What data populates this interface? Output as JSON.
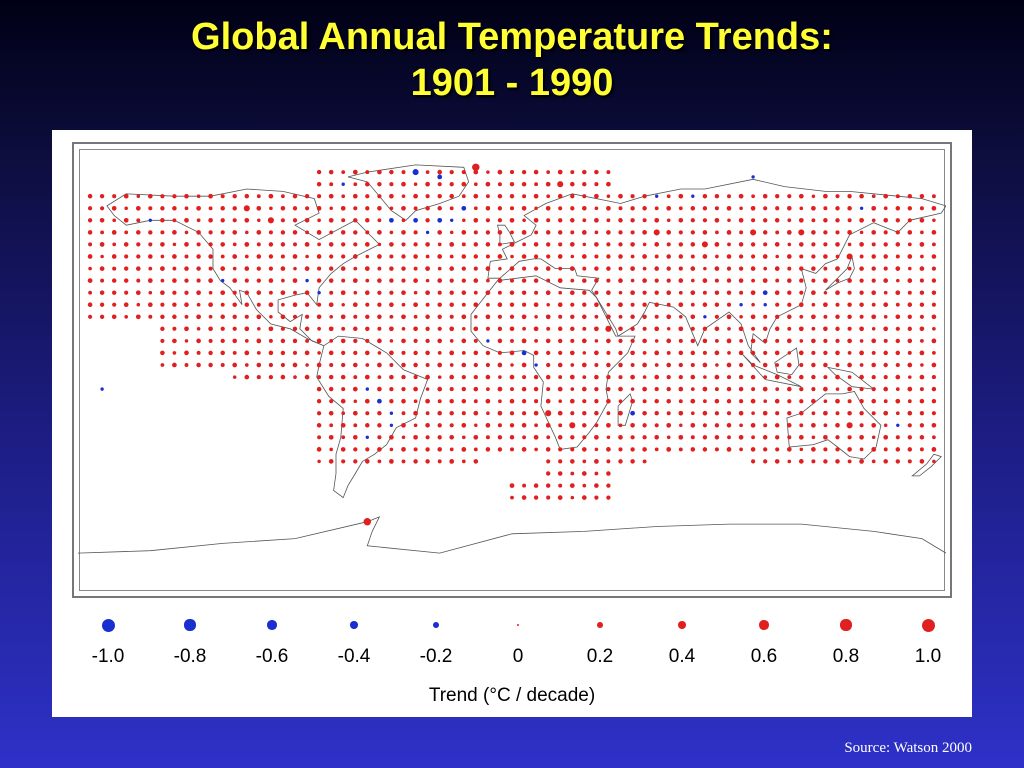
{
  "slide": {
    "title_line1": "Global Annual Temperature Trends:",
    "title_line2": "1901 - 1990",
    "source": "Source: Watson 2000"
  },
  "colors": {
    "title": "#ffff33",
    "warming_dot": "#e02020",
    "cooling_dot": "#1a2fd0",
    "coastline": "#555555",
    "background_top": "#000015",
    "background_bottom": "#2e31c8"
  },
  "legend": {
    "caption": "Trend (°C / decade)",
    "items": [
      {
        "value": -1.0,
        "label": "-1.0"
      },
      {
        "value": -0.8,
        "label": "-0.8"
      },
      {
        "value": -0.6,
        "label": "-0.6"
      },
      {
        "value": -0.4,
        "label": "-0.4"
      },
      {
        "value": -0.2,
        "label": "-0.2"
      },
      {
        "value": 0,
        "label": "0"
      },
      {
        "value": 0.2,
        "label": "0.2"
      },
      {
        "value": 0.4,
        "label": "0.4"
      },
      {
        "value": 0.6,
        "label": "0.6"
      },
      {
        "value": 0.8,
        "label": "0.8"
      },
      {
        "value": 1.0,
        "label": "1.0"
      }
    ]
  },
  "map": {
    "projection": "equirectangular",
    "lon_range": [
      -180,
      180
    ],
    "lat_range": [
      -90,
      90
    ],
    "grid_step_deg": 5,
    "typical_warming_trend": 0.4,
    "cooling_cells": [
      {
        "lon": -40,
        "lat": 80,
        "trend": -0.6
      },
      {
        "lon": -30,
        "lat": 78,
        "trend": -0.4
      },
      {
        "lon": -50,
        "lat": 60,
        "trend": -0.4
      },
      {
        "lon": -40,
        "lat": 60,
        "trend": -0.4
      },
      {
        "lon": -35,
        "lat": 55,
        "trend": -0.2
      },
      {
        "lon": -30,
        "lat": 60,
        "trend": -0.4
      },
      {
        "lon": -25,
        "lat": 60,
        "trend": -0.2
      },
      {
        "lon": -20,
        "lat": 65,
        "trend": -0.4
      },
      {
        "lon": -70,
        "lat": 75,
        "trend": -0.2
      },
      {
        "lon": 60,
        "lat": 70,
        "trend": -0.2
      },
      {
        "lon": 75,
        "lat": 70,
        "trend": -0.2
      },
      {
        "lon": 100,
        "lat": 78,
        "trend": -0.2
      },
      {
        "lon": 145,
        "lat": 65,
        "trend": -0.2
      },
      {
        "lon": 105,
        "lat": 30,
        "trend": -0.4
      },
      {
        "lon": 105,
        "lat": 25,
        "trend": -0.2
      },
      {
        "lon": 95,
        "lat": 25,
        "trend": -0.2
      },
      {
        "lon": 80,
        "lat": 20,
        "trend": -0.2
      },
      {
        "lon": 5,
        "lat": 5,
        "trend": -0.4
      },
      {
        "lon": 10,
        "lat": 0,
        "trend": -0.2
      },
      {
        "lon": -10,
        "lat": 10,
        "trend": -0.2
      },
      {
        "lon": -60,
        "lat": -10,
        "trend": -0.2
      },
      {
        "lon": -55,
        "lat": -15,
        "trend": -0.4
      },
      {
        "lon": -50,
        "lat": -20,
        "trend": -0.2
      },
      {
        "lon": -50,
        "lat": -25,
        "trend": -0.2
      },
      {
        "lon": -60,
        "lat": -30,
        "trend": -0.2
      },
      {
        "lon": 50,
        "lat": -20,
        "trend": -0.4
      },
      {
        "lon": -120,
        "lat": 35,
        "trend": -0.2
      },
      {
        "lon": -85,
        "lat": 35,
        "trend": -0.2
      },
      {
        "lon": -80,
        "lat": 30,
        "trend": -0.2
      },
      {
        "lon": -150,
        "lat": 60,
        "trend": -0.2
      },
      {
        "lon": 160,
        "lat": -25,
        "trend": -0.2
      },
      {
        "lon": -170,
        "lat": -10,
        "trend": -0.2
      }
    ],
    "strong_warming_cells": [
      {
        "lon": -60,
        "lat": -65,
        "trend": 0.8
      },
      {
        "lon": -15,
        "lat": 82,
        "trend": 0.8
      },
      {
        "lon": 20,
        "lat": 75,
        "trend": 0.6
      },
      {
        "lon": -110,
        "lat": 65,
        "trend": 0.6
      },
      {
        "lon": 100,
        "lat": 55,
        "trend": 0.6
      },
      {
        "lon": 120,
        "lat": 55,
        "trend": 0.6
      },
      {
        "lon": 60,
        "lat": 55,
        "trend": 0.6
      },
      {
        "lon": 80,
        "lat": 50,
        "trend": 0.6
      },
      {
        "lon": 140,
        "lat": 45,
        "trend": 0.6
      },
      {
        "lon": -100,
        "lat": 60,
        "trend": 0.6
      },
      {
        "lon": 15,
        "lat": -20,
        "trend": 0.6
      },
      {
        "lon": 25,
        "lat": -25,
        "trend": 0.6
      },
      {
        "lon": 140,
        "lat": -25,
        "trend": 0.6
      },
      {
        "lon": 40,
        "lat": 15,
        "trend": 0.6
      }
    ]
  }
}
